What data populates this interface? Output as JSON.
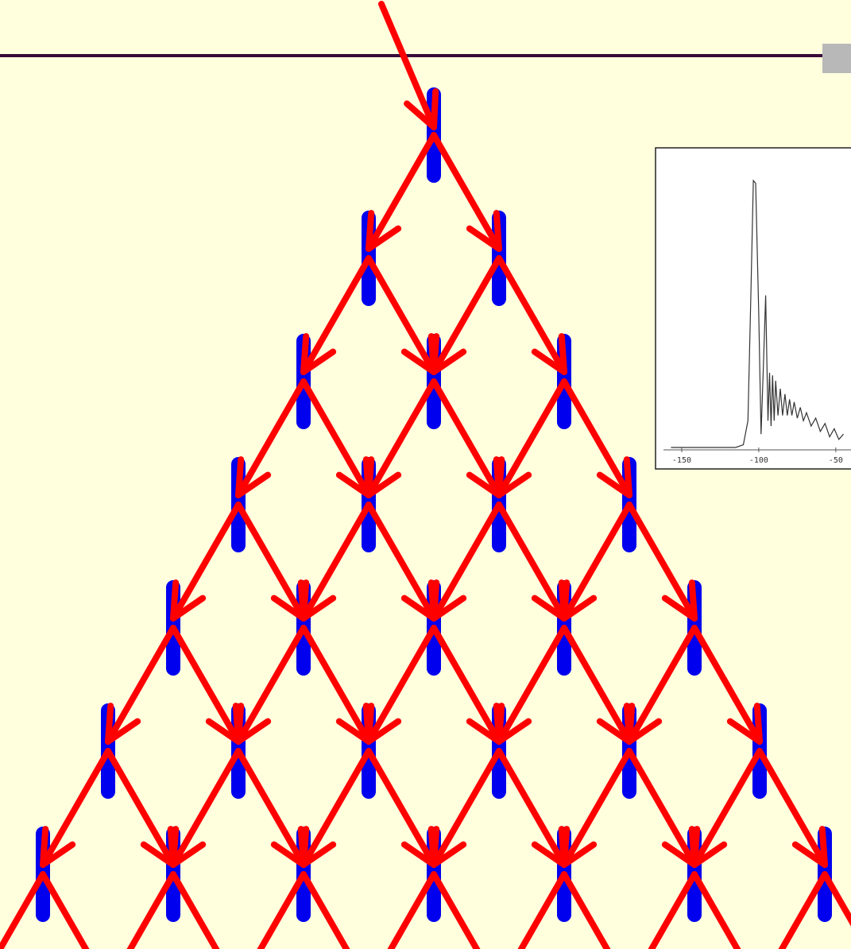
{
  "chart_data": {
    "type": "line",
    "x": [
      -157,
      -115,
      -110,
      -107,
      -105,
      -103.5,
      -102,
      -100,
      -98.5,
      -97,
      -95.5,
      -94,
      -93,
      -92,
      -91,
      -90,
      -89,
      -87.5,
      -86,
      -84.5,
      -83,
      -81.5,
      -80,
      -78.5,
      -77,
      -75,
      -73,
      -71,
      -69,
      -66,
      -63,
      -60,
      -57,
      -54,
      -51,
      -48,
      -45
    ],
    "values": [
      0,
      0,
      0.01,
      0.1,
      0.6,
      1.0,
      0.99,
      0.5,
      0.05,
      0.3,
      0.57,
      0.1,
      0.28,
      0.08,
      0.27,
      0.1,
      0.25,
      0.12,
      0.22,
      0.12,
      0.2,
      0.12,
      0.18,
      0.12,
      0.17,
      0.11,
      0.15,
      0.1,
      0.13,
      0.08,
      0.11,
      0.06,
      0.09,
      0.04,
      0.07,
      0.03,
      0.05
    ],
    "color": "#333333",
    "xlim": [
      -167,
      -20
    ],
    "ylim": [
      0,
      1.06
    ],
    "xticks": [
      {
        "value": -150,
        "label": "-150"
      },
      {
        "value": -100,
        "label": "-100"
      },
      {
        "value": -50,
        "label": "-50"
      }
    ]
  }
}
